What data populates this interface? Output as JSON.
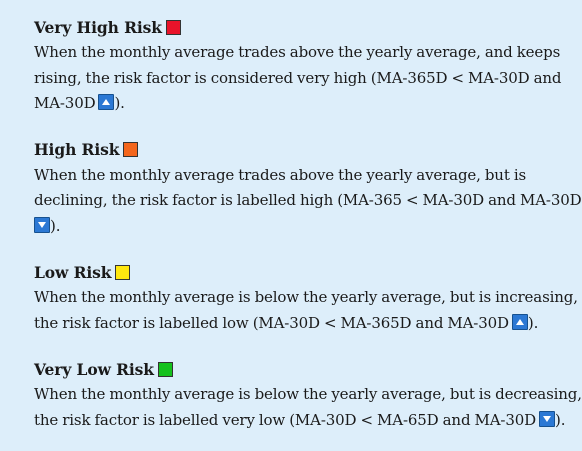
{
  "risk_levels": [
    {
      "title": "Very High Risk",
      "color": "#e8132a",
      "lines": [
        "When the monthly average trades above the yearly average, and keeps",
        "rising, the risk factor is considered very high (MA-365D < MA-30D and",
        "MA-30D"
      ],
      "arrow_icon": "up-arrow-icon",
      "closing": ")."
    },
    {
      "title": "High Risk",
      "color": "#f4661c",
      "lines": [
        "When the monthly average trades above the yearly average, but is",
        "declining, the risk factor is labelled high (MA-365 < MA-30D and MA-30D",
        ""
      ],
      "arrow_icon": "down-arrow-icon",
      "closing": ")."
    },
    {
      "title": "Low Risk",
      "color": "#ffe70f",
      "lines": [
        "When the monthly average is below the yearly average, but is increasing,",
        "the risk factor is labelled low (MA-30D < MA-365D and MA-30D"
      ],
      "arrow_icon": "up-arrow-icon",
      "closing": ")."
    },
    {
      "title": "Very Low Risk",
      "color": "#15c11d",
      "lines": [
        "When the monthly average is below the yearly average, but is decreasing,",
        "the risk factor is labelled very low (MA-30D < MA-65D and MA-30D"
      ],
      "arrow_icon": "down-arrow-icon",
      "closing": ")."
    }
  ]
}
